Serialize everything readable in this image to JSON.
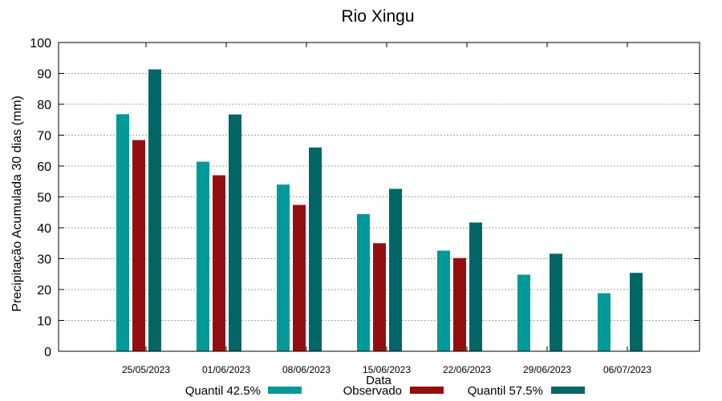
{
  "chart_data": {
    "type": "bar",
    "title": "Rio Xingu",
    "xlabel": "Data",
    "ylabel": "Precipitação Acumulada 30 dias (mm)",
    "ylim": [
      0,
      100
    ],
    "yticks": [
      0,
      10,
      20,
      30,
      40,
      50,
      60,
      70,
      80,
      90,
      100
    ],
    "grid": true,
    "legend_position": "bottom",
    "categories": [
      "25/05/2023",
      "01/06/2023",
      "08/06/2023",
      "15/06/2023",
      "22/06/2023",
      "29/06/2023",
      "06/07/2023"
    ],
    "series": [
      {
        "name": "Quantil 42.5%",
        "color": "#009999",
        "values": [
          76.8,
          61.4,
          54.0,
          44.4,
          32.6,
          24.8,
          18.8
        ]
      },
      {
        "name": "Observado",
        "color": "#930f0f",
        "values": [
          68.4,
          57.0,
          47.4,
          35.0,
          30.2,
          null,
          null
        ]
      },
      {
        "name": "Quantil 57.5%",
        "color": "#006666",
        "values": [
          91.3,
          76.7,
          66.0,
          52.6,
          41.7,
          31.6,
          25.4
        ]
      }
    ]
  }
}
